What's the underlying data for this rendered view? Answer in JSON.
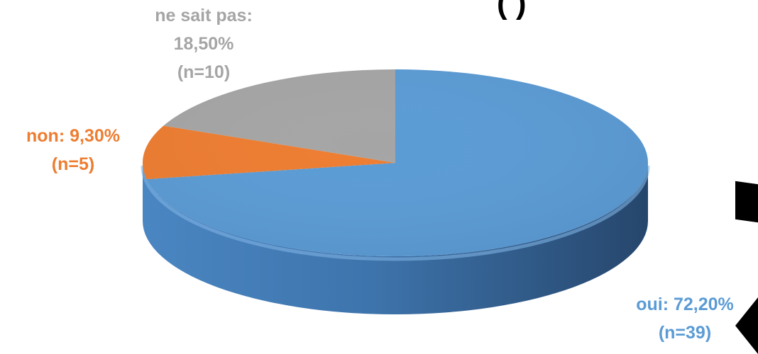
{
  "chart_data": {
    "type": "pie",
    "style": "3d",
    "categories": [
      "oui",
      "non",
      "ne sait pas"
    ],
    "values": [
      72.2,
      9.3,
      18.5
    ],
    "counts": [
      39,
      5,
      10
    ],
    "colors": [
      "#5B9BD5",
      "#ED7D31",
      "#A5A5A5"
    ],
    "labels": [
      {
        "lines": [
          "oui: 72,20%",
          "(n=39)"
        ]
      },
      {
        "lines": [
          "non: 9,30%",
          "(n=5)"
        ]
      },
      {
        "lines": [
          "ne sait pas:",
          "18,50%",
          "(n=10)"
        ]
      }
    ],
    "label_colors": [
      "#5B9BD5",
      "#ED7D31",
      "#A5A5A5"
    ],
    "legend": "none"
  }
}
